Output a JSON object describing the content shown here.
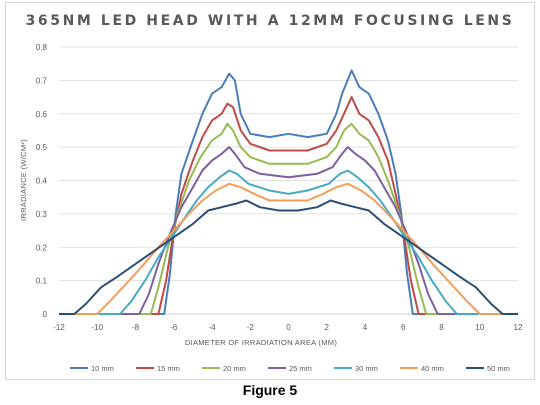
{
  "chart_data": {
    "type": "line",
    "title": "365NM LED HEAD WITH A 12MM FOCUSING LENS",
    "xlabel": "DIAMETER OF IRRADIATION AREA (MM)",
    "ylabel": "IRRADIANCE (W/CM²)",
    "xlim": [
      -12,
      12
    ],
    "ylim": [
      0,
      0.8
    ],
    "xticks": [
      "-12",
      "-10",
      "-8",
      "-6",
      "-4",
      "-2",
      "0",
      "2",
      "4",
      "6",
      "8",
      "10",
      "12"
    ],
    "yticks": [
      "0",
      "0.1",
      "0.2",
      "0.3",
      "0.4",
      "0.5",
      "0.6",
      "0.7",
      "0.8"
    ],
    "grid": "horizontal",
    "legend_position": "bottom",
    "series": [
      {
        "name": "10 mm",
        "color": "#4A7EBB",
        "x": [
          -12,
          -6.5,
          -6.2,
          -5.9,
          -5.6,
          -5,
          -4.5,
          -4,
          -3.5,
          -3.1,
          -2.8,
          -2.5,
          -2,
          -1,
          0,
          1,
          2,
          2.5,
          2.8,
          3.3,
          3.7,
          4.2,
          4.7,
          5.2,
          5.6,
          5.9,
          6.2,
          6.5,
          12
        ],
        "y": [
          0,
          0,
          0.12,
          0.3,
          0.42,
          0.52,
          0.6,
          0.66,
          0.68,
          0.72,
          0.7,
          0.6,
          0.54,
          0.53,
          0.54,
          0.53,
          0.54,
          0.6,
          0.66,
          0.73,
          0.68,
          0.66,
          0.6,
          0.52,
          0.42,
          0.3,
          0.12,
          0,
          0
        ]
      },
      {
        "name": "15 mm",
        "color": "#BE4B48",
        "x": [
          -12,
          -6.8,
          -6.4,
          -6,
          -5.6,
          -5,
          -4.5,
          -4,
          -3.5,
          -3.2,
          -2.9,
          -2.5,
          -2,
          -1,
          0,
          1,
          2,
          2.5,
          2.9,
          3.3,
          3.7,
          4.2,
          4.7,
          5.2,
          5.6,
          6,
          6.4,
          6.8,
          12
        ],
        "y": [
          0,
          0,
          0.1,
          0.25,
          0.36,
          0.46,
          0.53,
          0.58,
          0.6,
          0.63,
          0.62,
          0.55,
          0.51,
          0.49,
          0.49,
          0.49,
          0.51,
          0.55,
          0.6,
          0.65,
          0.6,
          0.58,
          0.53,
          0.46,
          0.36,
          0.25,
          0.1,
          0,
          0
        ]
      },
      {
        "name": "20 mm",
        "color": "#98B954",
        "x": [
          -12,
          -7.2,
          -6.8,
          -6.3,
          -5.8,
          -5.2,
          -4.6,
          -4,
          -3.5,
          -3.2,
          -2.9,
          -2.5,
          -2,
          -1,
          0,
          1,
          2,
          2.5,
          2.9,
          3.3,
          3.7,
          4.2,
          4.7,
          5.2,
          5.8,
          6.3,
          6.8,
          7.2,
          12
        ],
        "y": [
          0,
          0,
          0.08,
          0.2,
          0.3,
          0.4,
          0.47,
          0.52,
          0.54,
          0.57,
          0.55,
          0.5,
          0.47,
          0.45,
          0.45,
          0.45,
          0.47,
          0.5,
          0.55,
          0.57,
          0.54,
          0.52,
          0.47,
          0.4,
          0.3,
          0.2,
          0.08,
          0,
          0
        ]
      },
      {
        "name": "25 mm",
        "color": "#7D60A0",
        "x": [
          -12,
          -7.8,
          -7.3,
          -6.8,
          -6.2,
          -5.6,
          -5,
          -4.5,
          -4,
          -3.5,
          -3.1,
          -2.8,
          -2.3,
          -1.5,
          0,
          1.5,
          2.3,
          2.8,
          3.1,
          3.5,
          4,
          4.5,
          5,
          5.6,
          6.2,
          6.8,
          7.3,
          7.8,
          12
        ],
        "y": [
          0,
          0,
          0.06,
          0.15,
          0.24,
          0.32,
          0.38,
          0.43,
          0.46,
          0.48,
          0.5,
          0.48,
          0.44,
          0.42,
          0.41,
          0.42,
          0.44,
          0.48,
          0.5,
          0.48,
          0.46,
          0.43,
          0.38,
          0.32,
          0.24,
          0.15,
          0.06,
          0,
          0
        ]
      },
      {
        "name": "30 mm",
        "color": "#46AAC5",
        "x": [
          -12,
          -8.8,
          -8.2,
          -7.5,
          -6.8,
          -6.1,
          -5.4,
          -4.8,
          -4.2,
          -3.6,
          -3.1,
          -2.7,
          -2.1,
          -1,
          0,
          1,
          2.1,
          2.7,
          3.1,
          3.6,
          4.2,
          4.8,
          5.4,
          6.1,
          6.8,
          7.5,
          8.2,
          8.8,
          12
        ],
        "y": [
          0,
          0,
          0.04,
          0.1,
          0.17,
          0.23,
          0.29,
          0.34,
          0.38,
          0.41,
          0.43,
          0.42,
          0.39,
          0.37,
          0.36,
          0.37,
          0.39,
          0.42,
          0.43,
          0.41,
          0.38,
          0.34,
          0.29,
          0.23,
          0.17,
          0.1,
          0.04,
          0,
          0
        ]
      },
      {
        "name": "40 mm",
        "color": "#F59D56",
        "x": [
          -12,
          -10,
          -9.3,
          -8.5,
          -7.7,
          -6.8,
          -6,
          -5.2,
          -4.5,
          -3.8,
          -3.1,
          -2.5,
          -1.8,
          -1,
          0,
          1,
          1.8,
          2.5,
          3.1,
          3.8,
          4.5,
          5.2,
          6,
          6.8,
          7.7,
          8.5,
          9.3,
          10,
          12
        ],
        "y": [
          0,
          0,
          0.04,
          0.09,
          0.14,
          0.2,
          0.25,
          0.3,
          0.34,
          0.37,
          0.39,
          0.38,
          0.36,
          0.34,
          0.34,
          0.34,
          0.36,
          0.38,
          0.39,
          0.37,
          0.34,
          0.3,
          0.25,
          0.2,
          0.14,
          0.09,
          0.04,
          0,
          0
        ]
      },
      {
        "name": "50 mm",
        "color": "#2C4D75",
        "x": [
          -12,
          -11.2,
          -10.6,
          -9.8,
          -9,
          -8,
          -7,
          -6,
          -5,
          -4.2,
          -3.5,
          -2.8,
          -2.2,
          -1.5,
          -0.5,
          0.5,
          1.5,
          2.2,
          2.8,
          3.5,
          4.2,
          5,
          6,
          7,
          8,
          9,
          9.8,
          10.6,
          11.2,
          12
        ],
        "y": [
          0,
          0,
          0.03,
          0.08,
          0.11,
          0.15,
          0.19,
          0.23,
          0.27,
          0.31,
          0.32,
          0.33,
          0.34,
          0.32,
          0.31,
          0.31,
          0.32,
          0.34,
          0.33,
          0.32,
          0.31,
          0.27,
          0.23,
          0.19,
          0.15,
          0.11,
          0.08,
          0.03,
          0,
          0
        ]
      }
    ]
  },
  "caption": "Figure 5"
}
